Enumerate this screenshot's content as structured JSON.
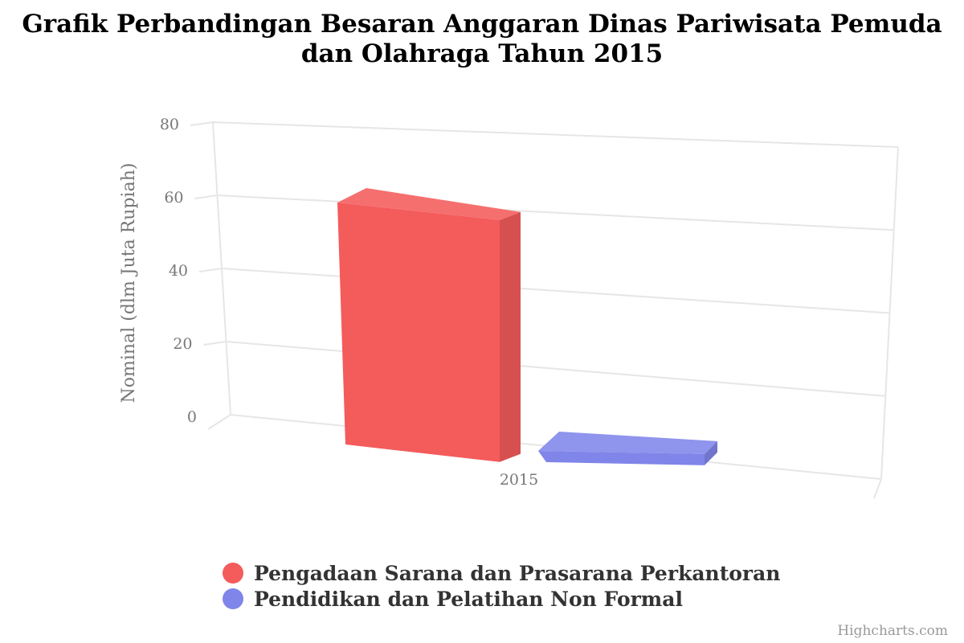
{
  "chart_data": {
    "type": "bar",
    "title_lines": [
      "Grafik Perbandingan Besaran Anggaran Dinas Pariwisata Pemuda",
      "dan Olahraga Tahun 2015"
    ],
    "categories": [
      "2015"
    ],
    "series": [
      {
        "name": "Pengadaan Sarana dan Prasarana Perkantoran",
        "values": [
          60
        ],
        "color": "#f45b5b"
      },
      {
        "name": "Pendidikan dan Pelatihan Non Formal",
        "values": [
          1.5
        ],
        "color": "#8085e9"
      }
    ],
    "ylabel": "Nominal (dlm Juta Rupiah)",
    "xlabel": "",
    "ylim": [
      0,
      80
    ],
    "yticks": [
      0,
      20,
      40,
      60,
      80
    ],
    "grid": true,
    "legend_position": "bottom-center",
    "style": "3d-column"
  },
  "credits": "Highcharts.com"
}
